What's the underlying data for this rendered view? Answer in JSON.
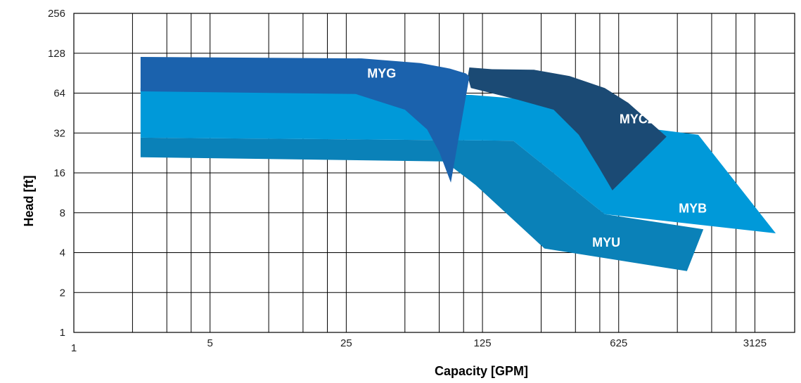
{
  "chart_data": {
    "type": "area",
    "xlabel": "Capacity [GPM]",
    "ylabel": "Head [ft]",
    "xscale": "log5",
    "yscale": "log2",
    "xlim": [
      1,
      5000
    ],
    "ylim": [
      1,
      256
    ],
    "x_ticks": [
      {
        "value": 1,
        "label": "1"
      },
      {
        "value": 5,
        "label": "5"
      },
      {
        "value": 25,
        "label": "25"
      },
      {
        "value": 125,
        "label": "125"
      },
      {
        "value": 625,
        "label": "625"
      },
      {
        "value": 3125,
        "label": "3125"
      }
    ],
    "y_ticks": [
      {
        "value": 1,
        "label": "1"
      },
      {
        "value": 2,
        "label": "2"
      },
      {
        "value": 4,
        "label": "4"
      },
      {
        "value": 8,
        "label": "8"
      },
      {
        "value": 16,
        "label": "16"
      },
      {
        "value": 32,
        "label": "32"
      },
      {
        "value": 64,
        "label": "64"
      },
      {
        "value": 128,
        "label": "128"
      },
      {
        "value": 256,
        "label": "256"
      }
    ],
    "grid": true,
    "series": [
      {
        "name": "MYU",
        "color": "#0a81b8",
        "label_at": [
          540,
          4.7
        ],
        "points": [
          [
            2.2,
            21
          ],
          [
            80,
            19.5
          ],
          [
            115,
            13
          ],
          [
            260,
            4.3
          ],
          [
            1400,
            2.9
          ],
          [
            1700,
            6
          ],
          [
            530,
            7.8
          ],
          [
            180,
            28
          ],
          [
            2.2,
            29.5
          ]
        ]
      },
      {
        "name": "MYB",
        "color": "#0099d9",
        "label_at": [
          1500,
          8.5
        ],
        "points": [
          [
            2.2,
            29.5
          ],
          [
            180,
            28
          ],
          [
            530,
            7.8
          ],
          [
            4000,
            5.6
          ],
          [
            1600,
            31
          ],
          [
            620,
            37
          ],
          [
            350,
            54
          ],
          [
            110,
            62
          ],
          [
            2.2,
            70
          ]
        ]
      },
      {
        "name": "MYCZ",
        "color": "#1b4a74",
        "label_at": [
          780,
          40
        ],
        "points": [
          [
            107,
            100
          ],
          [
            140,
            97
          ],
          [
            230,
            96
          ],
          [
            350,
            86
          ],
          [
            530,
            70
          ],
          [
            700,
            54
          ],
          [
            1100,
            30
          ],
          [
            580,
            11.8
          ],
          [
            490,
            18
          ],
          [
            390,
            31
          ],
          [
            290,
            48
          ],
          [
            190,
            57
          ],
          [
            109,
            70
          ],
          [
            105,
            85
          ]
        ]
      },
      {
        "name": "MYG",
        "color": "#1b62ad",
        "label_at": [
          38,
          89
        ],
        "points": [
          [
            2.2,
            120
          ],
          [
            30,
            117
          ],
          [
            60,
            108
          ],
          [
            85,
            98
          ],
          [
            103,
            90
          ],
          [
            107,
            85
          ],
          [
            86,
            13.5
          ],
          [
            75,
            23
          ],
          [
            65,
            34
          ],
          [
            50,
            48
          ],
          [
            28,
            63
          ],
          [
            2.2,
            66
          ]
        ]
      }
    ]
  }
}
